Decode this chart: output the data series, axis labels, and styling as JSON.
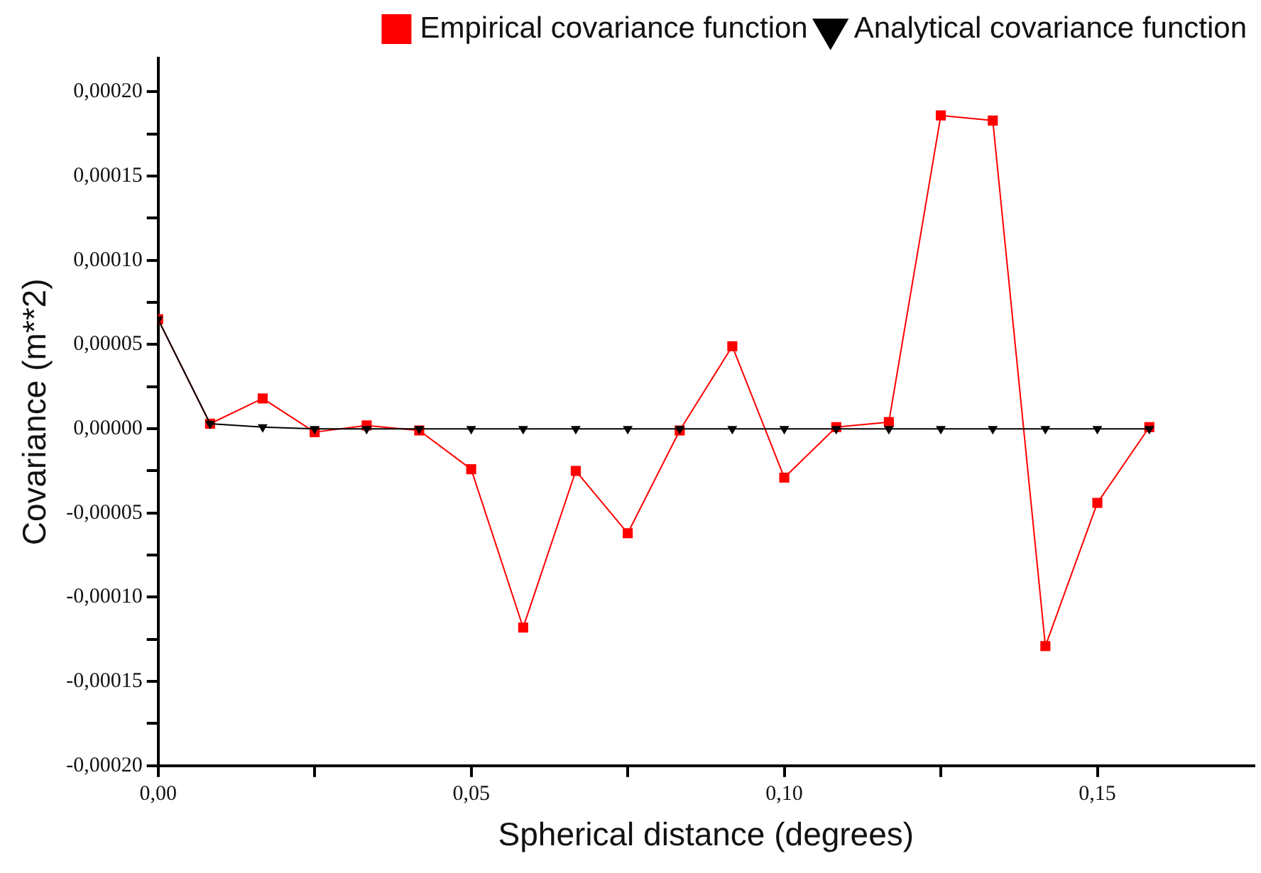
{
  "chart_data": {
    "type": "line",
    "xlabel": "Spherical distance (degrees)",
    "ylabel": "Covariance (m**2)",
    "x": [
      0,
      0.0083,
      0.0167,
      0.025,
      0.0333,
      0.0417,
      0.05,
      0.0583,
      0.0667,
      0.075,
      0.0833,
      0.0917,
      0.1,
      0.1083,
      0.1167,
      0.125,
      0.1333,
      0.1417,
      0.15,
      0.1583
    ],
    "series": [
      {
        "name": "Empirical covariance function",
        "color": "#ff0000",
        "marker": "square",
        "values": [
          6.5e-05,
          3e-06,
          1.8e-05,
          -2e-06,
          2e-06,
          -1e-06,
          -2.4e-05,
          -0.000118,
          -2.5e-05,
          -6.2e-05,
          -1e-06,
          4.9e-05,
          -2.9e-05,
          1e-06,
          4e-06,
          0.000186,
          0.000183,
          -0.000129,
          -4.4e-05,
          1e-06
        ]
      },
      {
        "name": "Analytical covariance function",
        "color": "#000000",
        "marker": "triangle",
        "values": [
          6.5e-05,
          3e-06,
          1e-06,
          0,
          0,
          0,
          0,
          0,
          0,
          0,
          0,
          0,
          0,
          0,
          0,
          0,
          0,
          0,
          0,
          0
        ]
      }
    ],
    "xlim": [
      0,
      0.175
    ],
    "xticks": [
      {
        "value": 0,
        "label": "0,00"
      },
      {
        "value": 0.025,
        "label": null
      },
      {
        "value": 0.05,
        "label": "0,05"
      },
      {
        "value": 0.075,
        "label": null
      },
      {
        "value": 0.1,
        "label": "0,10"
      },
      {
        "value": 0.125,
        "label": null
      },
      {
        "value": 0.15,
        "label": "0,15"
      }
    ],
    "ylim": [
      -0.0002,
      0.00022
    ],
    "yticks": [
      {
        "value": -0.0002,
        "label": "-0,00020"
      },
      {
        "value": -0.000175,
        "label": null
      },
      {
        "value": -0.00015,
        "label": "-0,00015"
      },
      {
        "value": -0.000125,
        "label": null
      },
      {
        "value": -0.0001,
        "label": "-0,00010"
      },
      {
        "value": -7.5e-05,
        "label": null
      },
      {
        "value": -5e-05,
        "label": "-0,00005"
      },
      {
        "value": -2.5e-05,
        "label": null
      },
      {
        "value": 0,
        "label": "0,00000"
      },
      {
        "value": 2.5e-05,
        "label": null
      },
      {
        "value": 5e-05,
        "label": "0,00005"
      },
      {
        "value": 7.5e-05,
        "label": null
      },
      {
        "value": 0.0001,
        "label": "0,00010"
      },
      {
        "value": 0.000125,
        "label": null
      },
      {
        "value": 0.00015,
        "label": "0,00015"
      },
      {
        "value": 0.000175,
        "label": null
      },
      {
        "value": 0.0002,
        "label": "0,00020"
      }
    ],
    "grid": false,
    "legend": "top right",
    "line_style": "solid"
  }
}
